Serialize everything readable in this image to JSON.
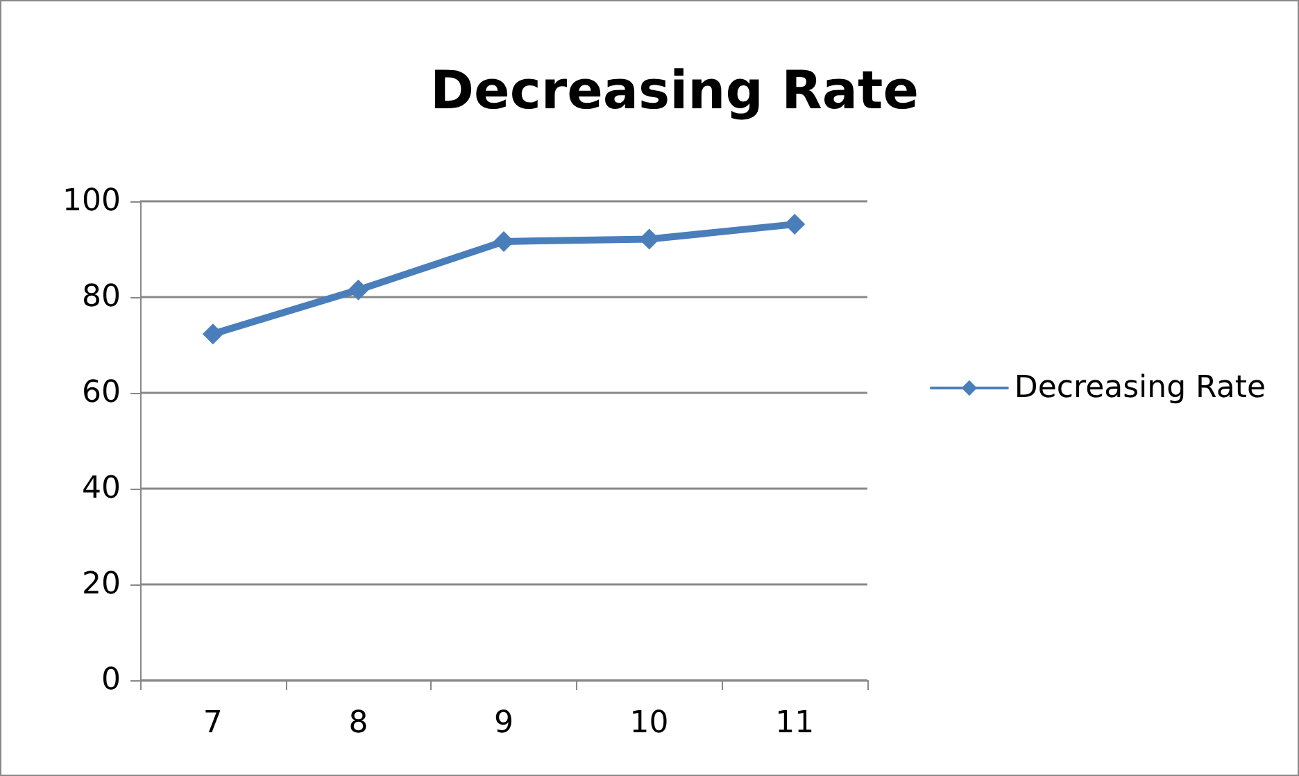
{
  "chart_data": {
    "type": "line",
    "title": "Decreasing Rate",
    "categories": [
      "7",
      "8",
      "9",
      "10",
      "11"
    ],
    "series": [
      {
        "name": "Decreasing Rate",
        "color": "#4a7ebb",
        "values": [
          72.3,
          81.5,
          91.6,
          92.1,
          95.2
        ]
      }
    ],
    "ylim": [
      0,
      100
    ],
    "yticks": [
      0,
      20,
      40,
      60,
      80,
      100
    ],
    "grid": "y",
    "legend": "right",
    "marker": "diamond",
    "line_style": "solid"
  }
}
